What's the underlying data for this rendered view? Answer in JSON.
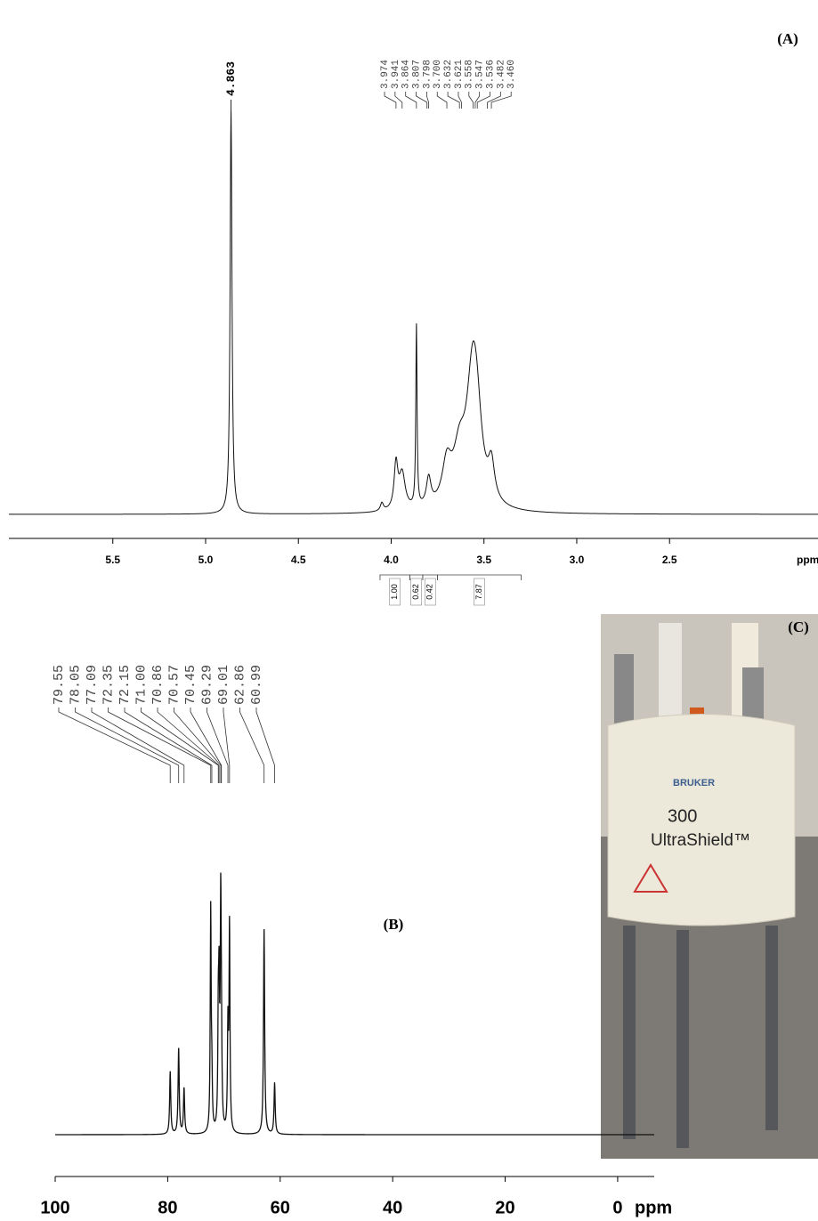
{
  "chart_data": [
    {
      "type": "nmr",
      "label": "(A)",
      "x_label": "ppm",
      "xlim": [
        6.06,
        1.7
      ],
      "ylim": [
        0,
        100
      ],
      "xticks": [
        5.5,
        {
          "value": 5,
          "label": "5.0"
        },
        4.5,
        {
          "value": 4,
          "label": "4.0"
        },
        3.5,
        {
          "value": 3,
          "label": "3.0"
        },
        2.5
      ],
      "peaks": [
        4.863,
        3.974,
        3.941,
        3.864,
        3.807,
        3.798,
        3.7,
        3.632,
        3.621,
        3.558,
        3.547,
        3.536,
        3.482,
        3.46
      ],
      "peak_labels": [
        "4.863",
        "3.974",
        "3.941",
        "3.864",
        "3.807",
        "3.798",
        "3.700",
        "3.632",
        "3.621",
        "3.558",
        "3.547",
        "3.536",
        "3.482",
        "3.460"
      ],
      "signal_shifts": [
        4.863,
        4.05,
        3.974,
        3.941,
        3.864,
        3.798,
        3.7,
        3.632,
        3.56,
        3.536,
        3.46
      ],
      "signal_heights": [
        100,
        2,
        11,
        9,
        45,
        7,
        10,
        12,
        33,
        10,
        9
      ],
      "signal_widths": [
        0.006,
        0.01,
        0.012,
        0.02,
        0.004,
        0.015,
        0.03,
        0.04,
        0.04,
        0.03,
        0.02
      ],
      "integral_ranges": [
        [
          4.06,
          3.9
        ],
        [
          3.9,
          3.83
        ],
        [
          3.83,
          3.75
        ],
        [
          3.75,
          3.3
        ]
      ],
      "integral_values": [
        1,
        0.62,
        0.42,
        7.87
      ],
      "integral_labels": [
        "1.00",
        "0.62",
        "0.42",
        "7.87"
      ]
    },
    {
      "type": "nmr",
      "label": "(B)",
      "x_label": "ppm",
      "xlim": [
        100,
        -6.5
      ],
      "ylim": [
        0,
        100
      ],
      "xticks": [
        100,
        80,
        60,
        40,
        20,
        0
      ],
      "peaks": [
        79.55,
        78.05,
        77.09,
        72.35,
        72.15,
        71.0,
        70.86,
        70.57,
        70.45,
        69.29,
        69.01,
        62.86,
        60.99
      ],
      "peak_labels": [
        "79.55",
        "78.05",
        "77.09",
        "72.35",
        "72.15",
        "71.00",
        "70.86",
        "70.57",
        "70.45",
        "69.29",
        "69.01",
        "62.86",
        "60.99"
      ],
      "signal_shifts": [
        79.55,
        78.05,
        77.09,
        72.35,
        72.15,
        71.0,
        70.86,
        70.57,
        70.45,
        69.29,
        69.01,
        62.86,
        60.99
      ],
      "signal_heights": [
        22,
        30,
        16,
        78,
        16,
        36,
        44,
        74,
        26,
        36,
        72,
        72,
        18
      ],
      "signal_widths": [
        0.12,
        0.12,
        0.12,
        0.1,
        0.1,
        0.1,
        0.1,
        0.1,
        0.1,
        0.1,
        0.1,
        0.12,
        0.12
      ]
    }
  ],
  "photo": {
    "label": "(C)",
    "brand": "BRUKER",
    "model": "300",
    "name": "UltraShield™"
  }
}
